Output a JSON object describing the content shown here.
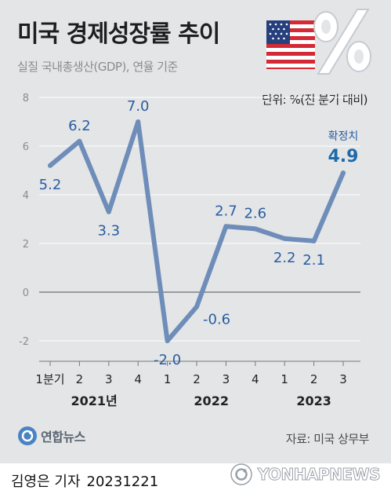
{
  "header": {
    "title": "미국 경제성장률 추이",
    "subtitle": "실질 국내총생산(GDP), 연율 기준",
    "unit": "단위: %(전 분기 대비)"
  },
  "flag_icon": "us-flag-icon",
  "percent_icon": "percent-icon",
  "footer": {
    "logo_text": "연합뉴스",
    "source": "자료: 미국 상무부",
    "author": "김영은 기자",
    "date": "20231221",
    "watermark": "YONHAPNEWS"
  },
  "colors": {
    "background": "#e3e5e7",
    "line": "#6f8db9",
    "label": "#2a5da0",
    "highlight": "#1e6aaa"
  },
  "chart_data": {
    "type": "line",
    "categories": [
      "1분기",
      "2",
      "3",
      "4",
      "1",
      "2",
      "3",
      "4",
      "1",
      "2",
      "3"
    ],
    "year_labels": [
      {
        "label": "2021년",
        "start": 0,
        "end": 3
      },
      {
        "label": "2022",
        "start": 4,
        "end": 7
      },
      {
        "label": "2023",
        "start": 8,
        "end": 10
      }
    ],
    "values": [
      5.2,
      6.2,
      3.3,
      7.0,
      -2.0,
      -0.6,
      2.7,
      2.6,
      2.2,
      2.1,
      4.9
    ],
    "value_labels": [
      "5.2",
      "6.2",
      "3.3",
      "7.0",
      "-2.0",
      "-0.6",
      "2.7",
      "2.6",
      "2.2",
      "2.1",
      "4.9"
    ],
    "label_side": [
      "below",
      "above",
      "below",
      "above",
      "below",
      "right",
      "above",
      "above",
      "below",
      "below",
      "above"
    ],
    "annotation": "확정치",
    "highlight_index": 10,
    "ylim": [
      -2,
      8
    ],
    "yticks": [
      -2,
      0,
      2,
      4,
      6,
      8
    ],
    "ytick_labels": [
      "-2",
      "0",
      "2",
      "4",
      "6",
      "8"
    ],
    "grid": true
  }
}
